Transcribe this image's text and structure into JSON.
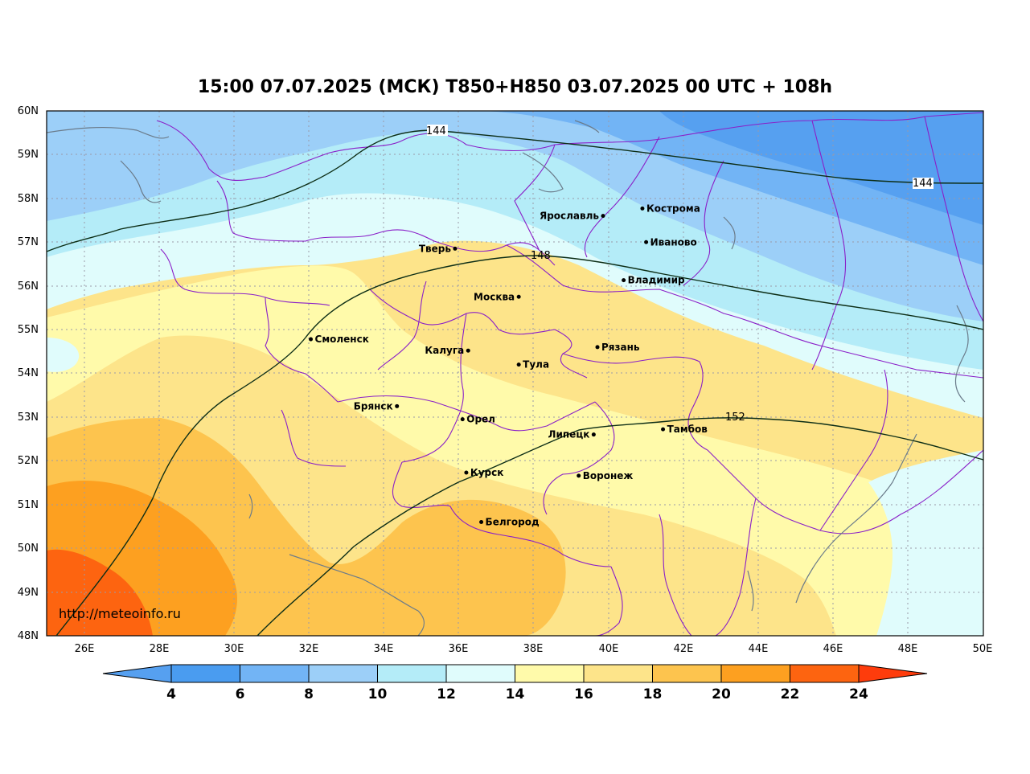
{
  "title": "15:00 07.07.2025 (МСК) T850+H850 03.07.2025 00 UTC + 108h",
  "watermark": "http://meteoinfo.ru",
  "map": {
    "lon_range": [
      25,
      50
    ],
    "lat_range": [
      48,
      60
    ],
    "lat_ticks": [
      "48N",
      "49N",
      "50N",
      "51N",
      "52N",
      "53N",
      "54N",
      "55N",
      "56N",
      "57N",
      "58N",
      "59N",
      "60N"
    ],
    "lon_ticks": [
      "26E",
      "28E",
      "30E",
      "32E",
      "34E",
      "36E",
      "38E",
      "40E",
      "42E",
      "44E",
      "46E",
      "48E",
      "50E"
    ],
    "cities": [
      {
        "name": "Кострома",
        "lon": 40.9,
        "lat": 57.77
      },
      {
        "name": "Ярославль",
        "lon": 39.85,
        "lat": 57.6
      },
      {
        "name": "Иваново",
        "lon": 41.0,
        "lat": 57.0
      },
      {
        "name": "Тверь",
        "lon": 35.9,
        "lat": 56.85
      },
      {
        "name": "Владимир",
        "lon": 40.4,
        "lat": 56.13
      },
      {
        "name": "Москва",
        "lon": 37.6,
        "lat": 55.75
      },
      {
        "name": "Смоленск",
        "lon": 32.05,
        "lat": 54.78
      },
      {
        "name": "Калуга",
        "lon": 36.25,
        "lat": 54.52
      },
      {
        "name": "Рязань",
        "lon": 39.7,
        "lat": 54.6
      },
      {
        "name": "Тула",
        "lon": 37.6,
        "lat": 54.2
      },
      {
        "name": "Брянск",
        "lon": 34.35,
        "lat": 53.25
      },
      {
        "name": "Орел",
        "lon": 36.1,
        "lat": 52.95
      },
      {
        "name": "Липецк",
        "lon": 39.6,
        "lat": 52.6
      },
      {
        "name": "Тамбов",
        "lon": 41.45,
        "lat": 52.72
      },
      {
        "name": "Курск",
        "lon": 36.2,
        "lat": 51.73
      },
      {
        "name": "Воронеж",
        "lon": 39.2,
        "lat": 51.66
      },
      {
        "name": "Белгород",
        "lon": 36.6,
        "lat": 50.6
      }
    ],
    "contour_labels": [
      "144",
      "144",
      "148",
      "152"
    ]
  },
  "colorbar": {
    "labels": [
      "4",
      "6",
      "8",
      "10",
      "12",
      "14",
      "16",
      "18",
      "20",
      "22",
      "24"
    ],
    "colors": [
      "#56a0f0",
      "#4a9cf0",
      "#72b4f5",
      "#9ccff8",
      "#b4ecf8",
      "#e0fcfc",
      "#fffaaa",
      "#fde48a",
      "#fdc44e",
      "#fda020",
      "#fd6410",
      "#fe3c0c"
    ]
  }
}
